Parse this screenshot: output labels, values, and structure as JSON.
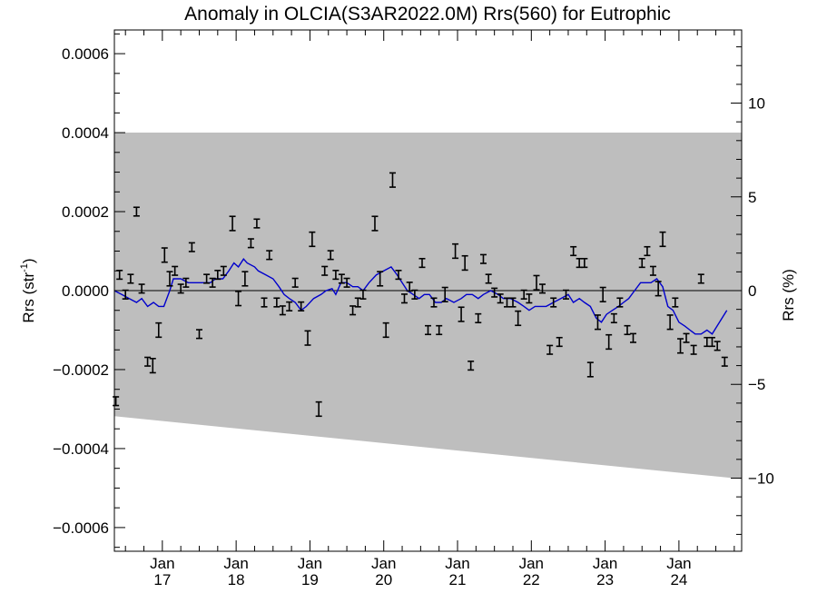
{
  "chart_data": {
    "type": "scatter",
    "title": "Anomaly in OLCIA(S3AR2022.0M) Rrs(560) for Eutrophic",
    "ylabel_left": {
      "main": "Rrs (str",
      "sup": "-1",
      "end": ")"
    },
    "ylabel_right": "Rrs (%)",
    "xlabel": "",
    "x_unit": "years since 2000",
    "xlim": [
      16.35,
      24.85
    ],
    "ylim_left": [
      -0.00066,
      0.00066
    ],
    "ylim_right": [
      -13.9,
      13.9
    ],
    "x_tick_labels": [
      {
        "x": 17.0,
        "month": "Jan",
        "year": "17"
      },
      {
        "x": 18.0,
        "month": "Jan",
        "year": "18"
      },
      {
        "x": 19.0,
        "month": "Jan",
        "year": "19"
      },
      {
        "x": 20.0,
        "month": "Jan",
        "year": "20"
      },
      {
        "x": 21.0,
        "month": "Jan",
        "year": "21"
      },
      {
        "x": 22.0,
        "month": "Jan",
        "year": "22"
      },
      {
        "x": 23.0,
        "month": "Jan",
        "year": "23"
      },
      {
        "x": 24.0,
        "month": "Jan",
        "year": "24"
      }
    ],
    "y_left_tick_labels": [
      {
        "v": 0.0006,
        "label": "0.0006"
      },
      {
        "v": 0.0004,
        "label": "0.0004"
      },
      {
        "v": 0.0002,
        "label": "0.0002"
      },
      {
        "v": 0.0,
        "label": "0.0000"
      },
      {
        "v": -0.0002,
        "label": "−0.0002"
      },
      {
        "v": -0.0004,
        "label": "−0.0004"
      },
      {
        "v": -0.0006,
        "label": "−0.0006"
      }
    ],
    "y_right_tick_labels": [
      {
        "v": 10,
        "label": "10"
      },
      {
        "v": 5,
        "label": "5"
      },
      {
        "v": 0,
        "label": "0"
      },
      {
        "v": -5,
        "label": "−5"
      },
      {
        "v": -10,
        "label": "−10"
      }
    ],
    "band": {
      "upper": [
        [
          16.35,
          0.0004
        ],
        [
          24.85,
          0.0004
        ]
      ],
      "lower": [
        [
          16.35,
          -0.000318
        ],
        [
          24.85,
          -0.000477
        ]
      ],
      "color": "#bebebe"
    },
    "zero_line": 0.0,
    "points": [
      {
        "x": 16.37,
        "y": -0.00028,
        "err": 1.1e-05
      },
      {
        "x": 16.42,
        "y": 4e-05,
        "err": 1.1e-05
      },
      {
        "x": 16.5,
        "y": -1e-05,
        "err": 1.1e-05
      },
      {
        "x": 16.57,
        "y": 3e-05,
        "err": 1.1e-05
      },
      {
        "x": 16.65,
        "y": 0.0002,
        "err": 1.1e-05
      },
      {
        "x": 16.72,
        "y": 5e-06,
        "err": 1.1e-05
      },
      {
        "x": 16.8,
        "y": -0.00018,
        "err": 1.1e-05
      },
      {
        "x": 16.87,
        "y": -0.00019,
        "err": 1.8e-05
      },
      {
        "x": 16.95,
        "y": -0.0001,
        "err": 1.8e-05
      },
      {
        "x": 17.03,
        "y": 9e-05,
        "err": 1.8e-05
      },
      {
        "x": 17.1,
        "y": 3e-05,
        "err": 1.8e-05
      },
      {
        "x": 17.17,
        "y": 5e-05,
        "err": 1.1e-05
      },
      {
        "x": 17.25,
        "y": 5e-06,
        "err": 1.1e-05
      },
      {
        "x": 17.32,
        "y": 2e-05,
        "err": 1.1e-05
      },
      {
        "x": 17.4,
        "y": 0.00011,
        "err": 1.1e-05
      },
      {
        "x": 17.5,
        "y": -0.00011,
        "err": 1.1e-05
      },
      {
        "x": 17.6,
        "y": 3e-05,
        "err": 1.1e-05
      },
      {
        "x": 17.68,
        "y": 2e-05,
        "err": 1.1e-05
      },
      {
        "x": 17.75,
        "y": 4e-05,
        "err": 1.1e-05
      },
      {
        "x": 17.83,
        "y": 5e-05,
        "err": 1.1e-05
      },
      {
        "x": 17.95,
        "y": 0.00017,
        "err": 1.8e-05
      },
      {
        "x": 18.03,
        "y": -2e-05,
        "err": 1.8e-05
      },
      {
        "x": 18.12,
        "y": 3e-05,
        "err": 1.8e-05
      },
      {
        "x": 18.2,
        "y": 0.00012,
        "err": 1.1e-05
      },
      {
        "x": 18.28,
        "y": 0.00017,
        "err": 1.1e-05
      },
      {
        "x": 18.38,
        "y": -3e-05,
        "err": 1.1e-05
      },
      {
        "x": 18.45,
        "y": 9e-05,
        "err": 1.1e-05
      },
      {
        "x": 18.55,
        "y": -3e-05,
        "err": 1.1e-05
      },
      {
        "x": 18.63,
        "y": -5e-05,
        "err": 1.1e-05
      },
      {
        "x": 18.72,
        "y": -4e-05,
        "err": 1.1e-05
      },
      {
        "x": 18.8,
        "y": 2e-05,
        "err": 1.1e-05
      },
      {
        "x": 18.88,
        "y": -4e-05,
        "err": 1.1e-05
      },
      {
        "x": 18.97,
        "y": -0.00012,
        "err": 1.8e-05
      },
      {
        "x": 19.03,
        "y": 0.00013,
        "err": 1.8e-05
      },
      {
        "x": 19.12,
        "y": -0.0003,
        "err": 1.8e-05
      },
      {
        "x": 19.2,
        "y": 5e-05,
        "err": 1.1e-05
      },
      {
        "x": 19.28,
        "y": 9e-05,
        "err": 1.1e-05
      },
      {
        "x": 19.35,
        "y": 4e-05,
        "err": 1.1e-05
      },
      {
        "x": 19.43,
        "y": 3e-05,
        "err": 1.1e-05
      },
      {
        "x": 19.5,
        "y": 2e-05,
        "err": 1.1e-05
      },
      {
        "x": 19.58,
        "y": -5e-05,
        "err": 1.1e-05
      },
      {
        "x": 19.65,
        "y": -3e-05,
        "err": 1.1e-05
      },
      {
        "x": 19.72,
        "y": -1e-05,
        "err": 1.1e-05
      },
      {
        "x": 19.88,
        "y": 0.00017,
        "err": 1.8e-05
      },
      {
        "x": 19.95,
        "y": 3e-05,
        "err": 1.8e-05
      },
      {
        "x": 20.03,
        "y": -0.0001,
        "err": 1.8e-05
      },
      {
        "x": 20.12,
        "y": 0.00028,
        "err": 1.8e-05
      },
      {
        "x": 20.2,
        "y": 4e-05,
        "err": 1.1e-05
      },
      {
        "x": 20.28,
        "y": -2e-05,
        "err": 1.1e-05
      },
      {
        "x": 20.35,
        "y": 1e-05,
        "err": 1.1e-05
      },
      {
        "x": 20.42,
        "y": -1e-05,
        "err": 1.1e-05
      },
      {
        "x": 20.52,
        "y": 7e-05,
        "err": 1.1e-05
      },
      {
        "x": 20.6,
        "y": -0.0001,
        "err": 1.1e-05
      },
      {
        "x": 20.68,
        "y": -3e-05,
        "err": 1.1e-05
      },
      {
        "x": 20.75,
        "y": -0.0001,
        "err": 1.1e-05
      },
      {
        "x": 20.83,
        "y": -1e-05,
        "err": 1.8e-05
      },
      {
        "x": 20.97,
        "y": 0.0001,
        "err": 1.8e-05
      },
      {
        "x": 21.05,
        "y": -6e-05,
        "err": 1.8e-05
      },
      {
        "x": 21.1,
        "y": 7e-05,
        "err": 1.8e-05
      },
      {
        "x": 21.18,
        "y": -0.00019,
        "err": 1.1e-05
      },
      {
        "x": 21.28,
        "y": -7e-05,
        "err": 1.1e-05
      },
      {
        "x": 21.35,
        "y": 8e-05,
        "err": 1.1e-05
      },
      {
        "x": 21.42,
        "y": 3e-05,
        "err": 1.1e-05
      },
      {
        "x": 21.5,
        "y": -5e-06,
        "err": 1.1e-05
      },
      {
        "x": 21.58,
        "y": -2e-05,
        "err": 1.1e-05
      },
      {
        "x": 21.67,
        "y": -3e-05,
        "err": 1.1e-05
      },
      {
        "x": 21.75,
        "y": -3e-05,
        "err": 1.1e-05
      },
      {
        "x": 21.82,
        "y": -7e-05,
        "err": 1.8e-05
      },
      {
        "x": 21.9,
        "y": -1e-05,
        "err": 1.1e-05
      },
      {
        "x": 21.97,
        "y": -2e-05,
        "err": 1.1e-05
      },
      {
        "x": 22.07,
        "y": 2e-05,
        "err": 1.8e-05
      },
      {
        "x": 22.15,
        "y": 5e-06,
        "err": 1.1e-05
      },
      {
        "x": 22.25,
        "y": -0.00015,
        "err": 1.1e-05
      },
      {
        "x": 22.3,
        "y": -3e-05,
        "err": 1.1e-05
      },
      {
        "x": 22.38,
        "y": -0.00013,
        "err": 1.1e-05
      },
      {
        "x": 22.47,
        "y": -1e-05,
        "err": 1.1e-05
      },
      {
        "x": 22.57,
        "y": 0.0001,
        "err": 1.1e-05
      },
      {
        "x": 22.65,
        "y": 7e-05,
        "err": 1.1e-05
      },
      {
        "x": 22.72,
        "y": 7e-05,
        "err": 1.1e-05
      },
      {
        "x": 22.8,
        "y": -0.0002,
        "err": 1.8e-05
      },
      {
        "x": 22.9,
        "y": -8e-05,
        "err": 1.8e-05
      },
      {
        "x": 22.97,
        "y": -1e-05,
        "err": 1.8e-05
      },
      {
        "x": 23.05,
        "y": -0.00013,
        "err": 1.8e-05
      },
      {
        "x": 23.12,
        "y": -7e-05,
        "err": 1.1e-05
      },
      {
        "x": 23.2,
        "y": -3e-05,
        "err": 1.1e-05
      },
      {
        "x": 23.3,
        "y": -0.0001,
        "err": 1.1e-05
      },
      {
        "x": 23.38,
        "y": -0.00012,
        "err": 1.1e-05
      },
      {
        "x": 23.5,
        "y": 7e-05,
        "err": 1.1e-05
      },
      {
        "x": 23.57,
        "y": 0.0001,
        "err": 1.1e-05
      },
      {
        "x": 23.65,
        "y": 5e-05,
        "err": 1.1e-05
      },
      {
        "x": 23.72,
        "y": 5e-06,
        "err": 1.8e-05
      },
      {
        "x": 23.78,
        "y": 0.00013,
        "err": 1.8e-05
      },
      {
        "x": 23.88,
        "y": -8e-05,
        "err": 1.8e-05
      },
      {
        "x": 23.95,
        "y": -3e-05,
        "err": 1.1e-05
      },
      {
        "x": 24.02,
        "y": -0.00014,
        "err": 1.8e-05
      },
      {
        "x": 24.1,
        "y": -0.00012,
        "err": 1.1e-05
      },
      {
        "x": 24.2,
        "y": -0.00015,
        "err": 1.1e-05
      },
      {
        "x": 24.3,
        "y": 3e-05,
        "err": 1.1e-05
      },
      {
        "x": 24.38,
        "y": -0.00013,
        "err": 1.1e-05
      },
      {
        "x": 24.45,
        "y": -0.00013,
        "err": 1.1e-05
      },
      {
        "x": 24.52,
        "y": -0.00014,
        "err": 1.1e-05
      },
      {
        "x": 24.62,
        "y": -0.00018,
        "err": 1.1e-05
      }
    ],
    "running_mean": {
      "color": "#0000cc",
      "points": [
        [
          16.35,
          0.0
        ],
        [
          16.45,
          -1e-05
        ],
        [
          16.55,
          -2e-05
        ],
        [
          16.65,
          -3e-05
        ],
        [
          16.72,
          -2e-05
        ],
        [
          16.8,
          -4e-05
        ],
        [
          16.88,
          -3e-05
        ],
        [
          16.95,
          -4e-05
        ],
        [
          17.02,
          -4e-05
        ],
        [
          17.1,
          0.0
        ],
        [
          17.15,
          3e-05
        ],
        [
          17.25,
          3e-05
        ],
        [
          17.35,
          2e-05
        ],
        [
          17.45,
          2e-05
        ],
        [
          17.55,
          2e-05
        ],
        [
          17.65,
          2e-05
        ],
        [
          17.72,
          3e-05
        ],
        [
          17.82,
          3e-05
        ],
        [
          17.9,
          5e-05
        ],
        [
          17.97,
          7e-05
        ],
        [
          18.03,
          6e-05
        ],
        [
          18.1,
          8e-05
        ],
        [
          18.15,
          7e-05
        ],
        [
          18.25,
          6e-05
        ],
        [
          18.3,
          5e-05
        ],
        [
          18.4,
          4e-05
        ],
        [
          18.5,
          3e-05
        ],
        [
          18.58,
          1e-05
        ],
        [
          18.65,
          -1e-05
        ],
        [
          18.72,
          -2e-05
        ],
        [
          18.8,
          -3e-05
        ],
        [
          18.88,
          -5e-05
        ],
        [
          18.95,
          -4e-05
        ],
        [
          19.05,
          -2e-05
        ],
        [
          19.15,
          -1e-05
        ],
        [
          19.22,
          0.0
        ],
        [
          19.3,
          5e-06
        ],
        [
          19.35,
          -1e-05
        ],
        [
          19.42,
          2e-05
        ],
        [
          19.5,
          2e-05
        ],
        [
          19.58,
          1e-05
        ],
        [
          19.65,
          1e-05
        ],
        [
          19.72,
          0.0
        ],
        [
          19.8,
          2e-05
        ],
        [
          19.9,
          4e-05
        ],
        [
          20.0,
          5e-05
        ],
        [
          20.1,
          6e-05
        ],
        [
          20.18,
          4e-05
        ],
        [
          20.25,
          2e-05
        ],
        [
          20.32,
          0.0
        ],
        [
          20.4,
          -1e-05
        ],
        [
          20.48,
          -2e-05
        ],
        [
          20.55,
          -1e-05
        ],
        [
          20.62,
          -1e-05
        ],
        [
          20.7,
          -3e-05
        ],
        [
          20.78,
          -3e-05
        ],
        [
          20.85,
          -2e-05
        ],
        [
          20.95,
          -3e-05
        ],
        [
          21.05,
          -2e-05
        ],
        [
          21.12,
          -1e-05
        ],
        [
          21.2,
          -1e-05
        ],
        [
          21.28,
          -2e-05
        ],
        [
          21.35,
          -1e-05
        ],
        [
          21.45,
          0.0
        ],
        [
          21.55,
          -1e-05
        ],
        [
          21.62,
          -2e-05
        ],
        [
          21.72,
          -2e-05
        ],
        [
          21.82,
          -3e-05
        ],
        [
          21.9,
          -4e-05
        ],
        [
          21.97,
          -5e-05
        ],
        [
          22.05,
          -4e-05
        ],
        [
          22.12,
          -4e-05
        ],
        [
          22.2,
          -4e-05
        ],
        [
          22.3,
          -3e-05
        ],
        [
          22.4,
          -2e-05
        ],
        [
          22.5,
          -1e-05
        ],
        [
          22.57,
          -3e-05
        ],
        [
          22.65,
          -2e-05
        ],
        [
          22.72,
          -3e-05
        ],
        [
          22.8,
          -4e-05
        ],
        [
          22.88,
          -7e-05
        ],
        [
          22.95,
          -8e-05
        ],
        [
          23.02,
          -6e-05
        ],
        [
          23.1,
          -5e-05
        ],
        [
          23.18,
          -4e-05
        ],
        [
          23.25,
          -3e-05
        ],
        [
          23.32,
          -2e-05
        ],
        [
          23.4,
          0.0
        ],
        [
          23.48,
          2e-05
        ],
        [
          23.55,
          2e-05
        ],
        [
          23.62,
          2e-05
        ],
        [
          23.7,
          3e-05
        ],
        [
          23.78,
          1e-05
        ],
        [
          23.85,
          -4e-05
        ],
        [
          23.92,
          -5e-05
        ],
        [
          24.0,
          -8e-05
        ],
        [
          24.08,
          -9e-05
        ],
        [
          24.15,
          -0.0001
        ],
        [
          24.22,
          -0.00011
        ],
        [
          24.3,
          -0.00011
        ],
        [
          24.38,
          -0.0001
        ],
        [
          24.45,
          -0.00011
        ],
        [
          24.55,
          -8e-05
        ],
        [
          24.65,
          -5e-05
        ]
      ]
    }
  }
}
